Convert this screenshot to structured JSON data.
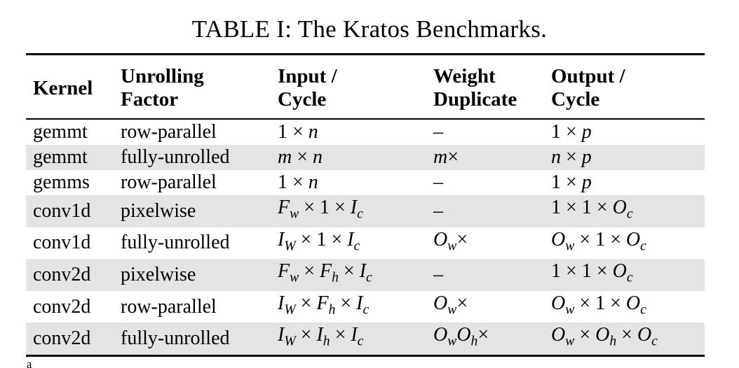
{
  "caption": "TABLE I: The Kratos Benchmarks.",
  "headers": [
    {
      "line1": "Kernel",
      "line2": ""
    },
    {
      "line1": "Unrolling",
      "line2": "Factor"
    },
    {
      "line1": "Input /",
      "line2": "Cycle"
    },
    {
      "line1": "Weight",
      "line2": "Duplicate"
    },
    {
      "line1": "Output /",
      "line2": "Cycle"
    }
  ],
  "rows": [
    {
      "kernel": "gemmt",
      "unrolling": "row-parallel",
      "input": "1 × n",
      "weight": "–",
      "output": "1 × p",
      "shaded": false
    },
    {
      "kernel": "gemmt",
      "unrolling": "fully-unrolled",
      "input": "m × n",
      "weight": "m×",
      "output": "n × p",
      "shaded": true
    },
    {
      "kernel": "gemms",
      "unrolling": "row-parallel",
      "input": "1 × n",
      "weight": "–",
      "output": "1 × p",
      "shaded": false
    },
    {
      "kernel": "conv1d",
      "unrolling": "pixelwise",
      "input": "F_w × 1 × I_c",
      "weight": "–",
      "output": "1 × 1 × O_c",
      "shaded": true
    },
    {
      "kernel": "conv1d",
      "unrolling": "fully-unrolled",
      "input": "I_W × 1 × I_c",
      "weight": "O_w×",
      "output": "O_w × 1 × O_c",
      "shaded": false
    },
    {
      "kernel": "conv2d",
      "unrolling": "pixelwise",
      "input": "F_w × F_h × I_c",
      "weight": "–",
      "output": "1 × 1 × O_c",
      "shaded": true
    },
    {
      "kernel": "conv2d",
      "unrolling": "row-parallel",
      "input": "I_W × F_h × I_c",
      "weight": "O_w×",
      "output": "O_w × 1 × O_c",
      "shaded": false
    },
    {
      "kernel": "conv2d",
      "unrolling": "fully-unrolled",
      "input": "I_W × I_h × I_c",
      "weight": "O_wO_h×",
      "output": "O_w × O_h × O_c",
      "shaded": true
    }
  ],
  "footnote_mark": "a",
  "colors": {
    "shade": "#e4e4e4",
    "rule": "#000000"
  }
}
